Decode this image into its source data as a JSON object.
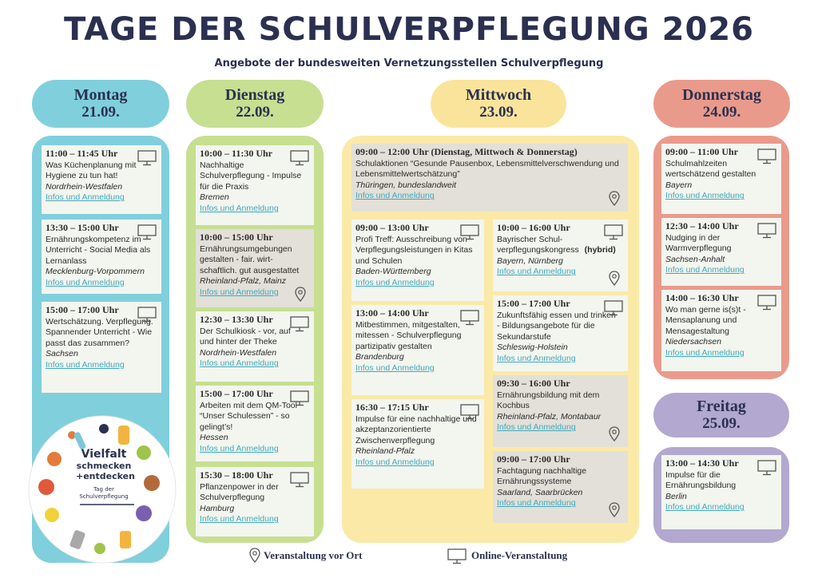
{
  "header": {
    "title": "TAGE DER SCHULVERPFLEGUNG 2026",
    "subtitle": "Angebote der bundesweiten Vernetzungsstellen Schulverpflegung"
  },
  "days": [
    {
      "name": "Montag",
      "date": "21.09.",
      "events": [
        {
          "time": "11:00 – 11:45 Uhr",
          "title": "Was Küchenplanung mit Hygiene zu tun hat!",
          "place": "Nordrhein-Westfalen",
          "link": "Infos und Anmeldung"
        },
        {
          "time": "13:30 – 15:00 Uhr",
          "title": "Ernährungskompetenz im Unterricht - Social Media als Lernanlass",
          "place": "Mecklenburg-Vorpommern",
          "link": "Infos und Anmeldung"
        },
        {
          "time": "15:00 – 17:00 Uhr",
          "title": "Wertschätzung. Verpflegung. Spannender Unterricht - Wie passt das zusammen?",
          "place": "Sachsen",
          "link": "Infos und Anmeldung"
        }
      ]
    },
    {
      "name": "Dienstag",
      "date": "22.09.",
      "events": [
        {
          "time": "10:00 – 11:30 Uhr",
          "title": "Nachhaltige Schulverpflegung - Impulse für die Praxis",
          "place": "Bremen",
          "link": "Infos und Anmeldung"
        },
        {
          "time": "10:00 – 15:00 Uhr",
          "title": "Ernährungsumgebungen gestalten - fair. wirt-schaftlich. gut ausgestattet",
          "place": "Rheinland-Pfalz, Mainz",
          "link": "Infos und Anmeldung"
        },
        {
          "time": "12:30 – 13:30 Uhr",
          "title": "Der Schulkiosk - vor, auf und hinter der Theke",
          "place": "Nordrhein-Westfalen",
          "link": "Infos und Anmeldung"
        },
        {
          "time": "15:00 – 17:00 Uhr",
          "title": "Arbeiten mit dem QM-Tool “Unser Schulessen” - so gelingt’s!",
          "place": "Hessen",
          "link": "Infos und Anmeldung"
        },
        {
          "time": "15:30 – 18:00 Uhr",
          "title": "Pflanzenpower in der Schulverpflegung",
          "place": "Hamburg",
          "link": "Infos und Anmeldung"
        }
      ]
    },
    {
      "name": "Mittwoch",
      "date": "23.09.",
      "events": [
        {
          "time": "09:00 – 12:00 Uhr (Dienstag, Mittwoch & Donnerstag)",
          "title": "Schulaktionen “Gesunde Pausenbox, Lebensmittelverschwendung und Lebensmittelwertschätzung”",
          "place": "Thüringen, bundeslandweit",
          "link": "Infos und Anmeldung"
        },
        {
          "time": "09:00 – 13:00 Uhr",
          "title": "Profi Treff: Ausschreibung von Verpflegungsleistungen in Kitas und Schulen",
          "place": "Baden-Württemberg",
          "link": "Infos und Anmeldung"
        },
        {
          "time": "13:00 – 14:00 Uhr",
          "title": "Mitbestimmen, mitgestalten, mitessen - Schulverpflegung partizipativ gestalten",
          "place": "Brandenburg",
          "link": "Infos und Anmeldung"
        },
        {
          "time": "16:30 – 17:15 Uhr",
          "title": "Impulse für eine nachhaltige und akzeptanzorientierte Zwischenverpflegung",
          "place": "Rheinland-Pfalz",
          "link": "Infos und Anmeldung"
        },
        {
          "time": "10:00 – 16:00 Uhr",
          "title": "Bayrischer Schul-verpflegungskongress",
          "highlight": "(hybrid)",
          "place": "Bayern, Nürnberg",
          "link": "Infos und Anmeldung"
        },
        {
          "time": "15:00 – 17:00 Uhr",
          "title": "Zukunftsfähig essen und trinken - Bildungsangebote für die Sekundarstufe",
          "place": "Schleswig-Holstein",
          "link": "Infos und Anmeldung"
        },
        {
          "time": "09:30 – 16:00 Uhr",
          "title": "Ernährungsbildung mit dem Kochbus",
          "place": "Rheinland-Pfalz, Montabaur",
          "link": "Infos und Anmeldung"
        },
        {
          "time": "09:00 – 17:00 Uhr",
          "title": "Fachtagung nachhaltige Ernährungssysteme",
          "place": "Saarland, Saarbrücken",
          "link": "Infos und Anmeldung"
        }
      ]
    },
    {
      "name": "Donnerstag",
      "date": "24.09.",
      "events": [
        {
          "time": "09:00 – 11:00 Uhr",
          "title": "Schulmahlzeiten wertschätzend gestalten",
          "place": "Bayern",
          "link": "Infos und Anmeldung"
        },
        {
          "time": "12:30 – 14:00 Uhr",
          "title": "Nudging in der Warmverpflegung",
          "place": "Sachsen-Anhalt",
          "link": "Infos und Anmeldung"
        },
        {
          "time": "14:00 – 16:30 Uhr",
          "title": "Wo man gerne is(s)t - Mensaplanung und Mensagestaltung",
          "place": "Niedersachsen",
          "link": "Infos und Anmeldung"
        }
      ]
    },
    {
      "name": "Freitag",
      "date": "25.09.",
      "events": [
        {
          "time": "13:00 – 14:30 Uhr",
          "title": "Impulse für die Ernährungsbildung",
          "place": "Berlin",
          "link": "Infos und Anmeldung"
        }
      ]
    }
  ],
  "logo": {
    "title": [
      "Vielfalt",
      "schmecken",
      "+entdecken"
    ],
    "caption": [
      "Tag der",
      "Schulverpflegung"
    ]
  },
  "legend": {
    "onsite": "Veranstaltung vor Ort",
    "online": "Online-Veranstaltung"
  }
}
